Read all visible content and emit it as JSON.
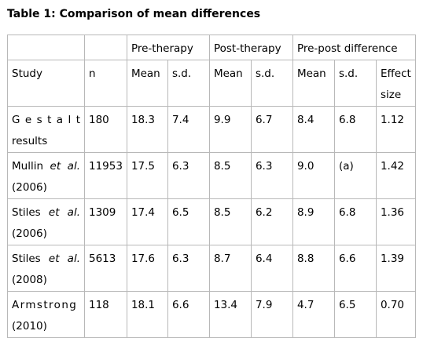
{
  "caption": "Table 1: Comparison of mean differences",
  "groups": [
    "",
    "",
    "Pre-therapy",
    "Post-therapy",
    "Pre-post difference"
  ],
  "headers": [
    "Study",
    "n",
    "Mean",
    "s.d.",
    "Mean",
    "s.d.",
    "Mean",
    "s.d.",
    "Effect size"
  ],
  "rows": [
    {
      "study_a": "G e s t a l t",
      "etal": "",
      "study_b": "results",
      "n": "180",
      "pre_mean": "18.3",
      "pre_sd": "7.4",
      "post_mean": "9.9",
      "post_sd": "6.7",
      "diff_mean": "8.4",
      "diff_sd": "6.8",
      "effect": "1.12"
    },
    {
      "study_a": "Mullin",
      "etal": "et al.",
      "study_b": "(2006)",
      "n": "11953",
      "pre_mean": "17.5",
      "pre_sd": "6.3",
      "post_mean": "8.5",
      "post_sd": "6.3",
      "diff_mean": "9.0",
      "diff_sd": "(a)",
      "effect": "1.42"
    },
    {
      "study_a": "Stiles",
      "etal": "et al.",
      "study_b": "(2006)",
      "n": "1309",
      "pre_mean": "17.4",
      "pre_sd": "6.5",
      "post_mean": "8.5",
      "post_sd": "6.2",
      "diff_mean": "8.9",
      "diff_sd": "6.8",
      "effect": "1.36"
    },
    {
      "study_a": "Stiles",
      "etal": "et al.",
      "study_b": "(2008)",
      "n": "5613",
      "pre_mean": "17.6",
      "pre_sd": "6.3",
      "post_mean": "8.7",
      "post_sd": "6.4",
      "diff_mean": "8.8",
      "diff_sd": "6.6",
      "effect": "1.39"
    },
    {
      "study_a": "Armstrong",
      "etal": "",
      "study_b": "(2010)",
      "n": "118",
      "pre_mean": "18.1",
      "pre_sd": "6.6",
      "post_mean": "13.4",
      "post_sd": "7.9",
      "diff_mean": "4.7",
      "diff_sd": "6.5",
      "effect": "0.70"
    }
  ]
}
